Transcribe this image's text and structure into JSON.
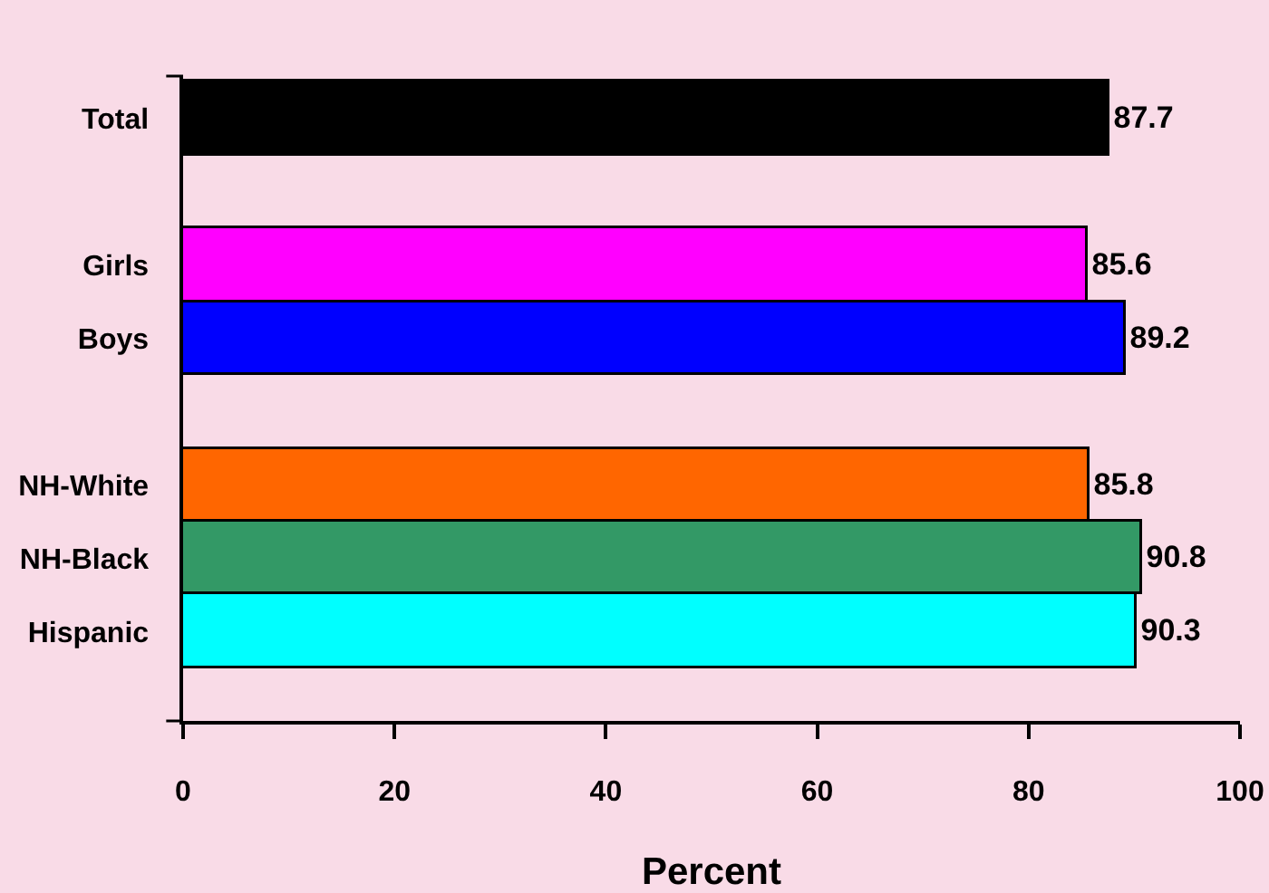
{
  "chart_data": {
    "type": "bar",
    "orientation": "horizontal",
    "xlabel": "Percent",
    "categories": [
      "Total",
      null,
      "Girls",
      "Boys",
      null,
      "NH-White",
      "NH-Black",
      "Hispanic"
    ],
    "values": [
      87.7,
      null,
      85.6,
      89.2,
      null,
      85.8,
      90.8,
      90.3
    ],
    "colors": [
      "#000000",
      null,
      "#ff00ff",
      "#0000ff",
      null,
      "#ff6600",
      "#339966",
      "#00ffff"
    ],
    "xlim": [
      0,
      100
    ],
    "xticks": [
      0,
      20,
      40,
      60,
      80,
      100
    ],
    "data_labels": true,
    "grid": false
  }
}
